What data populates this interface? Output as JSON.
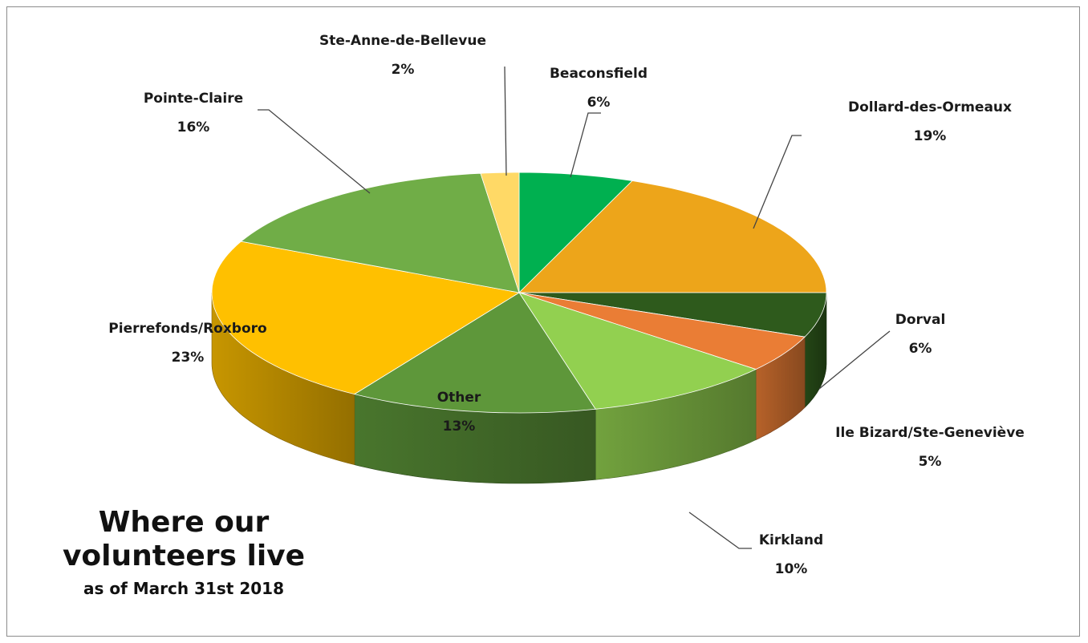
{
  "chart_data": {
    "type": "pie",
    "title_lines": [
      "Where our",
      "volunteers live"
    ],
    "subtitle": "as of March 31st 2018",
    "slices": [
      {
        "label": "Beaconsfield",
        "value": 6,
        "value_label": "6%",
        "color": "#00b050"
      },
      {
        "label": "Dollard-des-Ormeaux",
        "value": 19,
        "value_label": "19%",
        "color": "#eda51a"
      },
      {
        "label": "Dorval",
        "value": 6,
        "value_label": "6%",
        "color": "#2e5a1c"
      },
      {
        "label": "Ile Bizard/Ste-Geneviève",
        "value": 5,
        "value_label": "5%",
        "color": "#ea7d35"
      },
      {
        "label": "Kirkland",
        "value": 10,
        "value_label": "10%",
        "color": "#92d050"
      },
      {
        "label": "Other",
        "value": 13,
        "value_label": "13%",
        "color": "#5e973a"
      },
      {
        "label": "Pierrefonds/Roxboro",
        "value": 23,
        "value_label": "23%",
        "color": "#ffc000"
      },
      {
        "label": "Pointe-Claire",
        "value": 16,
        "value_label": "16%",
        "color": "#70ad47"
      },
      {
        "label": "Ste-Anne-de-Bellevue",
        "value": 2,
        "value_label": "2%",
        "color": "#ffd966"
      }
    ],
    "legend": "none",
    "style": "3d"
  }
}
